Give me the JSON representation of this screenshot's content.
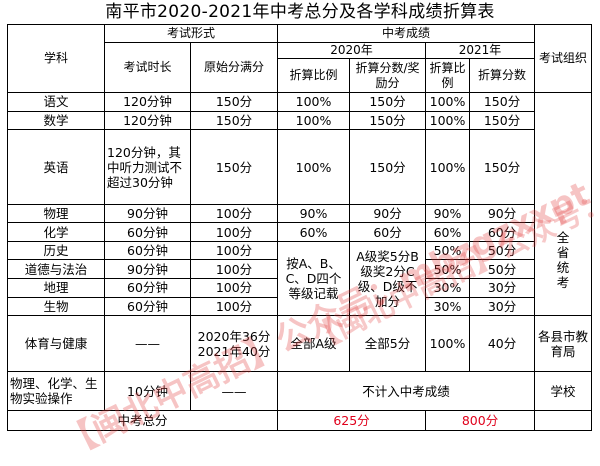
{
  "title": "南平市2020-2021年中考总分及各学科成绩折算表",
  "header": {
    "subject": "学科",
    "exam_form": "考试形式",
    "exam_duration": "考试时长",
    "original_full": "原始分满分",
    "zhongkao_score": "中考成绩",
    "y2020": "2020年",
    "y2021": "2021年",
    "ratio": "折算比例",
    "converted_bonus": "折算分数/奖励分",
    "ratio_2021": "折算比例",
    "converted_2021": "折算分数",
    "organizer": "考试组织"
  },
  "rows": [
    {
      "subject": "语文",
      "duration": "120分钟",
      "full": "150分",
      "r2020": "100%",
      "s2020": "150分",
      "r2021": "100%",
      "s2021": "150分"
    },
    {
      "subject": "数学",
      "duration": "120分钟",
      "full": "150分",
      "r2020": "100%",
      "s2020": "150分",
      "r2021": "100%",
      "s2021": "150分"
    },
    {
      "subject": "英语",
      "duration": "120分钟，其中听力测试不超过30分钟",
      "full": "150分",
      "r2020": "100%",
      "s2020": "150分",
      "r2021": "100%",
      "s2021": "150分"
    },
    {
      "subject": "物理",
      "duration": "90分钟",
      "full": "100分",
      "r2020": "90%",
      "s2020": "90分",
      "r2021": "90%",
      "s2021": "90分"
    },
    {
      "subject": "化学",
      "duration": "60分钟",
      "full": "100分",
      "r2020": "60%",
      "s2020": "60分",
      "r2021": "60%",
      "s2021": "60分"
    },
    {
      "subject": "历史",
      "duration": "60分钟",
      "full": "100分",
      "r2021": "50%",
      "s2021": "50分"
    },
    {
      "subject": "道德与法治",
      "duration": "90分钟",
      "full": "100分",
      "r2021": "50%",
      "s2021": "50分"
    },
    {
      "subject": "地理",
      "duration": "60分钟",
      "full": "100分",
      "r2021": "30%",
      "s2021": "30分"
    },
    {
      "subject": "生物",
      "duration": "60分钟",
      "full": "100分",
      "r2021": "30%",
      "s2021": "30分"
    }
  ],
  "grade_note_2020": "按A、B、C、D四个等级记载",
  "bonus_note_2020": "A级奖5分B级奖2分C级、D级不加分",
  "organizer_province": "全省统考",
  "pe": {
    "subject": "体育与健康",
    "duration": "——",
    "full": "2020年36分2021年40分",
    "r2020": "全部A级",
    "s2020": "全部5分",
    "r2021": "100%",
    "s2021": "40分",
    "organizer": "各县市教育局"
  },
  "lab": {
    "subject": "物理、化学、生物实验操作",
    "duration": "10分钟",
    "full": "——",
    "note": "不计入中考成绩",
    "organizer": "学校"
  },
  "total": {
    "label": "中考总分",
    "s2020": "625分",
    "s2021": "800分"
  },
  "watermarks": {
    "diag1": "【闽北中高招】公众号：mbzgzxxpt",
    "diag2": "【闽北中高招】公众号：mbzgzxxpt"
  },
  "colors": {
    "total_scores": "#e0001b",
    "watermark": "#e13c3c"
  }
}
